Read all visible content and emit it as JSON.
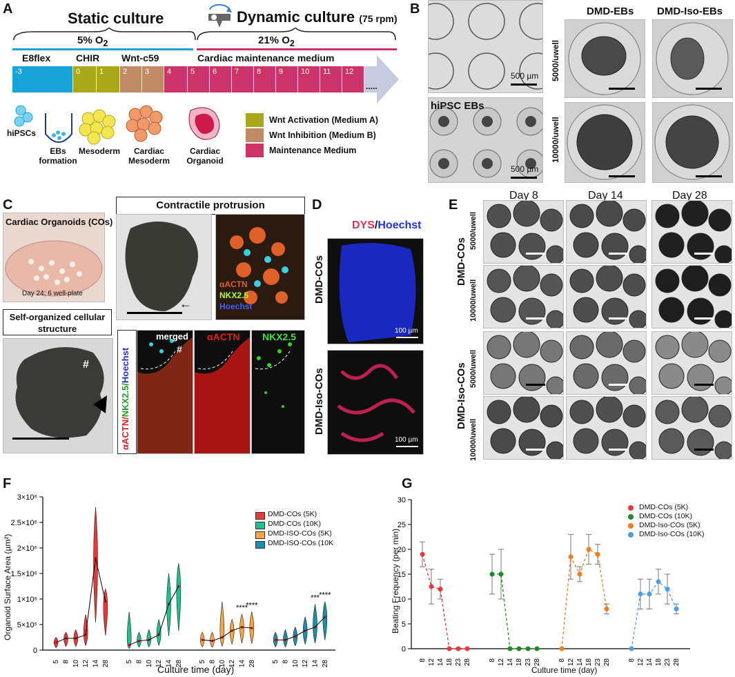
{
  "panel_labels": {
    "A": "A",
    "B": "B",
    "C": "C",
    "D": "D",
    "E": "E",
    "F": "F",
    "G": "G"
  },
  "panel_a": {
    "static_title": "Static culture",
    "dynamic_title": "Dynamic culture",
    "dynamic_rpm": "(75 rpm)",
    "o2_static": "5% O",
    "o2_static_sub": "2",
    "o2_dynamic": "21% O",
    "o2_dynamic_sub": "2",
    "medium_labels": [
      "E8flex",
      "CHIR",
      "Wnt-c59",
      "Cardiac maintenance medium"
    ],
    "days": [
      "-3",
      "0",
      "1",
      "2",
      "3",
      "4",
      "5",
      "6",
      "7",
      "8",
      "9",
      "10",
      "11",
      "12"
    ],
    "ellipsis": ".....",
    "stage_labels": [
      "hiPSCs",
      "EBs formation",
      "Mesoderm",
      "Cardiac Mesoderm",
      "Cardiac Organoid"
    ],
    "legend": [
      {
        "label": "Wnt Activation (Medium A)",
        "color": "#a9a81a"
      },
      {
        "label": "Wnt Inhibition (Medium B)",
        "color": "#c08a66"
      },
      {
        "label": "Maintenance Medium",
        "color": "#cc3368"
      }
    ],
    "colors": {
      "e8flex": "#1aa3d9",
      "chir": "#a9a81a",
      "wnt": "#c08a66",
      "maint": "#cc3368",
      "arrow": "#c6cbe0"
    }
  },
  "panel_b": {
    "scale_1": "500 µm",
    "scale_2": "500 µm",
    "hipsc_label": "hiPSC EBs",
    "col1": "DMD-EBs",
    "col2": "DMD-Iso-EBs",
    "row1": "5000/uwell",
    "row2": "10000/uwell"
  },
  "panel_c": {
    "plate_title": "Cardiac Organoids (COs)",
    "plate_caption": "Day 24; 6 well-plate",
    "contractile_title": "Contractile protrusion",
    "self_title": "Self-organized cellular structure",
    "hash": "#",
    "stain_actn": "αACTN",
    "stain_nkx": "NKX2.5",
    "stain_hoechst": "Hoechst",
    "merged": "merged",
    "side_label_actn": "αACTN/",
    "side_label_nkx": "NKX2.5/",
    "side_label_hoechst": "Hoechst"
  },
  "panel_d": {
    "title_dys": "DYS",
    "title_sep": "/",
    "title_hoechst": "Hoechst",
    "row1": "DMD-COs",
    "row2": "DMD-Iso-COs",
    "scale": "100 µm"
  },
  "panel_e": {
    "days": [
      "Day 8",
      "Day 14",
      "Day 28"
    ],
    "groups": [
      "DMD-COs",
      "DMD-Iso-COs"
    ],
    "rows": [
      "5000/uwell",
      "10000/uwell",
      "5000/uwell",
      "10000/uwell"
    ]
  },
  "panel_f": {
    "y_ticks": [
      "0",
      "5×10⁵",
      "1×10⁶",
      "1.5×10⁶",
      "2×10⁶",
      "2.5×10⁶",
      "3×10⁶"
    ],
    "ylabel": "Organoid Surface Area (µm²)",
    "xlabel": "Culture time (day)",
    "x_ticks": [
      "5",
      "8",
      "10",
      "12",
      "14",
      "28"
    ],
    "sig": [
      "****",
      "****",
      "***",
      "****"
    ],
    "legend": [
      {
        "label": "DMD-COs (5K)",
        "color": "#e8383b"
      },
      {
        "label": "DMD-COs (10K)",
        "color": "#1fbf8f"
      },
      {
        "label": "DMD-ISO-COs (5K)",
        "color": "#f4a742"
      },
      {
        "label": "DMD-ISO-COs (10K",
        "color": "#1d8fa8"
      }
    ]
  },
  "panel_g": {
    "y_ticks": [
      "0",
      "5",
      "10",
      "15",
      "20",
      "25",
      "30"
    ],
    "ylabel": "Beating Frequency (per min)",
    "xlabel": "Culture time (day)",
    "legend": [
      {
        "label": "DMD-COs (5K)",
        "color": "#e8383b"
      },
      {
        "label": "DMD-COs (10K)",
        "color": "#1f8a28"
      },
      {
        "label": "DMD-Iso-COs (5K)",
        "color": "#ee7d1c"
      },
      {
        "label": "DMD-Iso-COs (10K)",
        "color": "#4a9de0"
      }
    ]
  },
  "chart_data": [
    {
      "type": "violin",
      "title": "",
      "xlabel": "Culture time (day)",
      "ylabel": "Organoid Surface Area (µm²)",
      "ylim": [
        0,
        3000000
      ],
      "categories": [
        "5",
        "8",
        "10",
        "12",
        "14",
        "28"
      ],
      "series": [
        {
          "name": "DMD-COs (5K)",
          "values": [
            150000,
            230000,
            230000,
            300000,
            1800000,
            950000
          ],
          "max": [
            250000,
            350000,
            400000,
            700000,
            2800000,
            1200000
          ]
        },
        {
          "name": "DMD-COs (10K)",
          "values": [
            100000,
            180000,
            200000,
            300000,
            900000,
            1250000
          ],
          "max": [
            750000,
            350000,
            400000,
            600000,
            1500000,
            1700000
          ]
        },
        {
          "name": "DMD-ISO-COs (5K)",
          "values": [
            200000,
            180000,
            250000,
            380000,
            450000,
            430000
          ],
          "max": [
            350000,
            350000,
            950000,
            600000,
            700000,
            750000
          ]
        },
        {
          "name": "DMD-ISO-COs (10K",
          "values": [
            200000,
            200000,
            270000,
            380000,
            450000,
            650000
          ],
          "max": [
            350000,
            400000,
            450000,
            650000,
            900000,
            950000
          ]
        }
      ],
      "significance": [
        "****",
        "****",
        "***",
        "****"
      ]
    },
    {
      "type": "scatter",
      "title": "",
      "xlabel": "Culture time (day)",
      "ylabel": "Beating Frequency (per min)",
      "ylim": [
        0,
        30
      ],
      "series": [
        {
          "name": "DMD-COs (5K)",
          "x": [
            "8",
            "12",
            "14",
            "18",
            "23",
            "28"
          ],
          "values": [
            19,
            12.5,
            12,
            0,
            0,
            0
          ],
          "err": [
            2.5,
            3.5,
            2,
            0,
            0,
            0
          ]
        },
        {
          "name": "DMD-COs (10K)",
          "x": [
            "8",
            "12",
            "14",
            "18",
            "23",
            "28"
          ],
          "values": [
            15,
            15,
            0,
            0,
            0,
            0
          ],
          "err": [
            4,
            5,
            0,
            0,
            0,
            0
          ]
        },
        {
          "name": "DMD-Iso-COs (5K)",
          "x": [
            "8",
            "12",
            "14",
            "18",
            "23",
            "28"
          ],
          "values": [
            0,
            18.5,
            15,
            20,
            19,
            8
          ],
          "err": [
            0,
            4.5,
            1.5,
            3,
            2,
            1
          ]
        },
        {
          "name": "DMD-Iso-COs (10K)",
          "x": [
            "8",
            "12",
            "14",
            "18",
            "23",
            "28"
          ],
          "values": [
            0,
            11,
            11,
            13.5,
            12,
            8
          ],
          "err": [
            0,
            3,
            3,
            2.5,
            3,
            1
          ]
        }
      ]
    }
  ]
}
